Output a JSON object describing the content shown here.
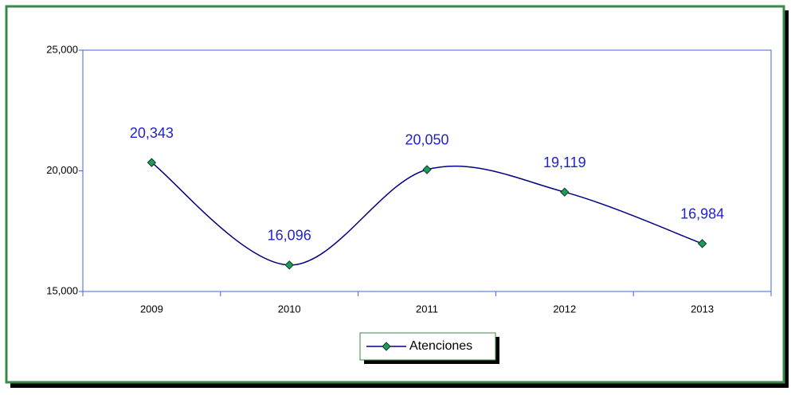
{
  "chart_data": {
    "type": "line",
    "categories": [
      "2009",
      "2010",
      "2011",
      "2012",
      "2013"
    ],
    "series": [
      {
        "name": "Atenciones",
        "color": "#000080",
        "marker_color": "#1f9a5c",
        "values": [
          20343,
          16096,
          20050,
          19119,
          16984
        ],
        "value_labels": [
          "20,343",
          "16,096",
          "20,050",
          "19,119",
          "16,984"
        ]
      }
    ],
    "ylim": [
      15000,
      25000
    ],
    "yticks": [
      {
        "value": 15000,
        "label": "15,000"
      },
      {
        "value": 20000,
        "label": "20,000"
      },
      {
        "value": 25000,
        "label": "25,000"
      }
    ],
    "smooth": true,
    "legend": "bottom"
  }
}
